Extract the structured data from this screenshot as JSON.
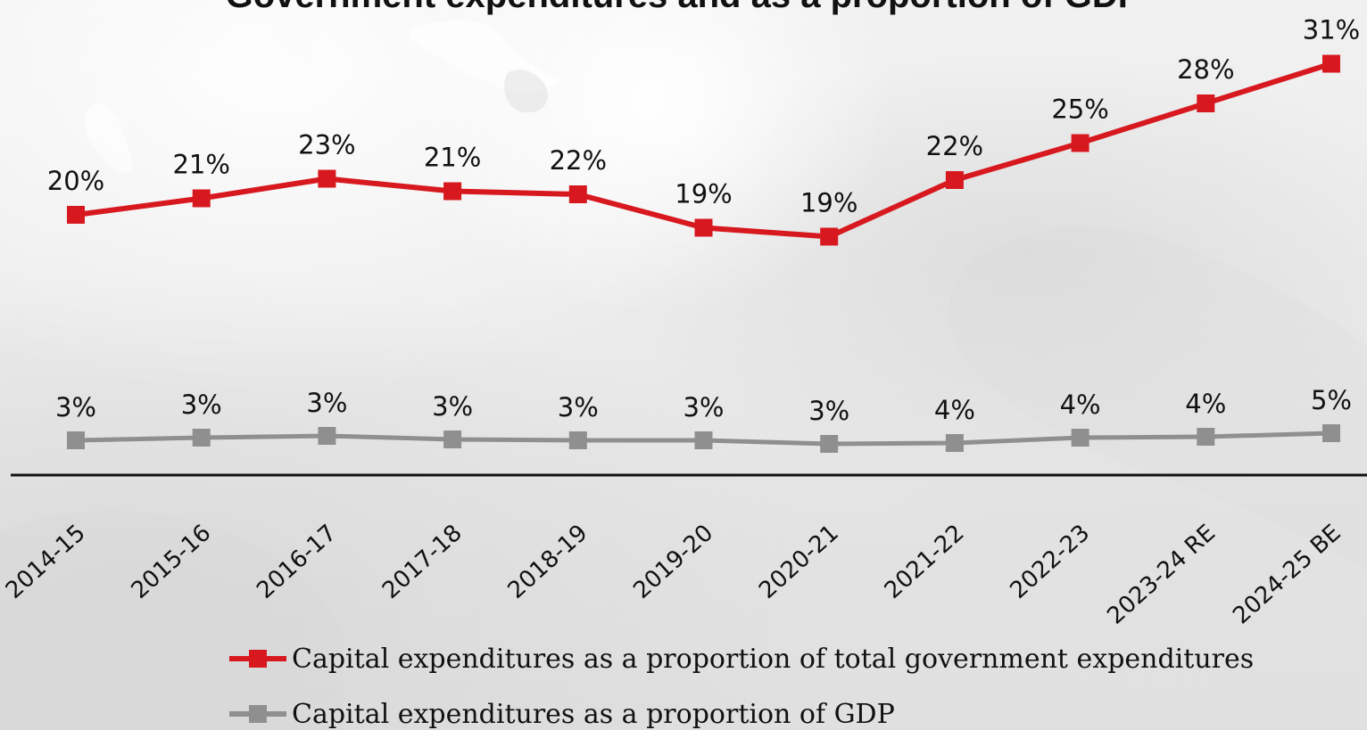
{
  "chart_data": {
    "type": "line",
    "title": "Government expenditures and as a proportion of GDP",
    "categories": [
      "2014-15",
      "2015-16",
      "2016-17",
      "2017-18",
      "2018-19",
      "2019-20",
      "2020-21",
      "2021-22",
      "2022-23",
      "2023-24 RE",
      "2024-25 BE"
    ],
    "series": [
      {
        "name": "Capital expenditures as a proportion of total government expenditures",
        "values": [
          20,
          21,
          23,
          21,
          22,
          19,
          19,
          22,
          25,
          28,
          31
        ],
        "labels": [
          "20%",
          "21%",
          "23%",
          "21%",
          "22%",
          "19%",
          "19%",
          "22%",
          "25%",
          "28%",
          "31%"
        ],
        "color": "#d7191f"
      },
      {
        "name": "Capital expenditures as a proportion of GDP",
        "values": [
          3,
          3,
          3,
          3,
          3,
          3,
          3,
          4,
          4,
          4,
          5
        ],
        "labels": [
          "3%",
          "3%",
          "3%",
          "3%",
          "3%",
          "3%",
          "3%",
          "4%",
          "4%",
          "4%",
          "5%"
        ],
        "color": "#8f8f8f"
      }
    ],
    "xlabel": "",
    "ylabel": "",
    "ylim": [
      0,
      35
    ],
    "grid": false,
    "legend": "bottom"
  },
  "colors": {
    "axis": "#111111",
    "text": "#111111",
    "background": "#ececec"
  }
}
